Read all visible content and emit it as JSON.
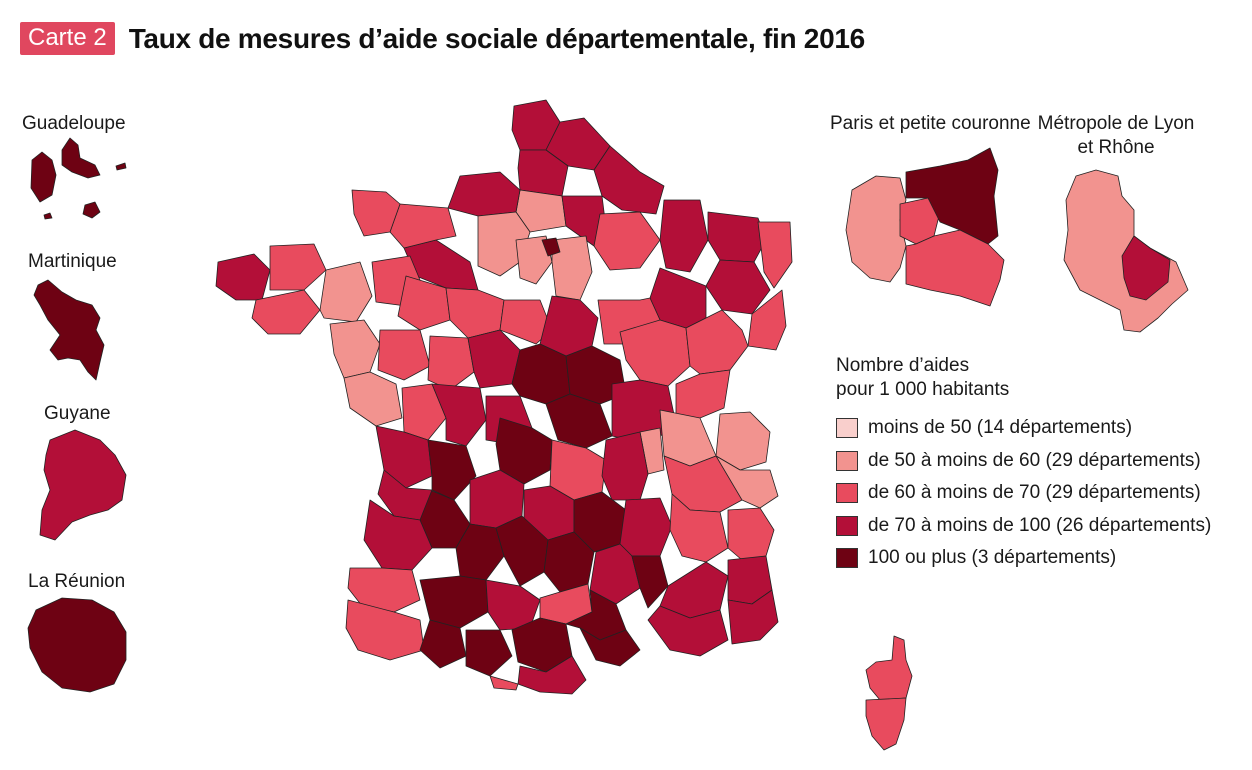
{
  "header": {
    "badge": "Carte 2",
    "title": "Taux de mesures d’aide sociale départementale, fin 2016"
  },
  "insets": {
    "guadeloupe": "Guadeloupe",
    "martinique": "Martinique",
    "guyane": "Guyane",
    "reunion": "La Réunion",
    "paris": "Paris et petite couronne",
    "lyon_line1": "Métropole de Lyon",
    "lyon_line2": "et Rhône"
  },
  "legend": {
    "title_line1": "Nombre d’aides",
    "title_line2": "pour 1 000 habitants",
    "classes": [
      {
        "label": "moins de 50 (14 départements)",
        "color": "#f9cfcc"
      },
      {
        "label": "de 50 à moins de 60 (29 départements)",
        "color": "#f2938f"
      },
      {
        "label": "de 60 à moins de 70 (29 départements)",
        "color": "#e84b5e"
      },
      {
        "label": "de 70 à moins de 100 (26 départements)",
        "color": "#b30f38"
      },
      {
        "label": "100 ou plus (3 départements)",
        "color": "#6e0213"
      }
    ]
  },
  "map_classes": {
    "guadeloupe": 4,
    "martinique": 4,
    "guyane": 3,
    "reunion": 4,
    "corse_sud": 2,
    "haute_corse": 2
  }
}
